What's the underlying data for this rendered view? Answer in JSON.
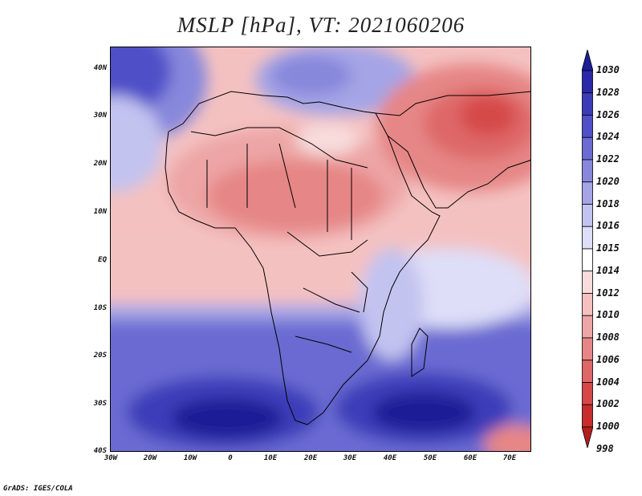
{
  "title": "MSLP [hPa], VT: 2021060206",
  "credit": "GrADS: IGES/COLA",
  "lat_labels": [
    "40N",
    "30N",
    "20N",
    "10N",
    "EQ",
    "10S",
    "20S",
    "30S",
    "40S"
  ],
  "lon_labels": [
    "30W",
    "20W",
    "10W",
    "0",
    "10E",
    "20E",
    "30E",
    "40E",
    "50E",
    "60E",
    "70E"
  ],
  "colorbar": {
    "levels": [
      "1030",
      "1028",
      "1026",
      "1024",
      "1022",
      "1020",
      "1018",
      "1016",
      "1015",
      "1014",
      "1012",
      "1010",
      "1008",
      "1006",
      "1004",
      "1002",
      "1000",
      "998"
    ],
    "colors": [
      "#1e1e96",
      "#2a2aa8",
      "#3c3cb9",
      "#5050c8",
      "#6b6bd2",
      "#8787dc",
      "#a4a4e6",
      "#c3c3f0",
      "#dedef8",
      "#ffffff",
      "#f8dcdc",
      "#f4c1c1",
      "#eda5a5",
      "#e68686",
      "#de6767",
      "#d64848",
      "#c82d2d",
      "#b41e1e"
    ]
  }
}
